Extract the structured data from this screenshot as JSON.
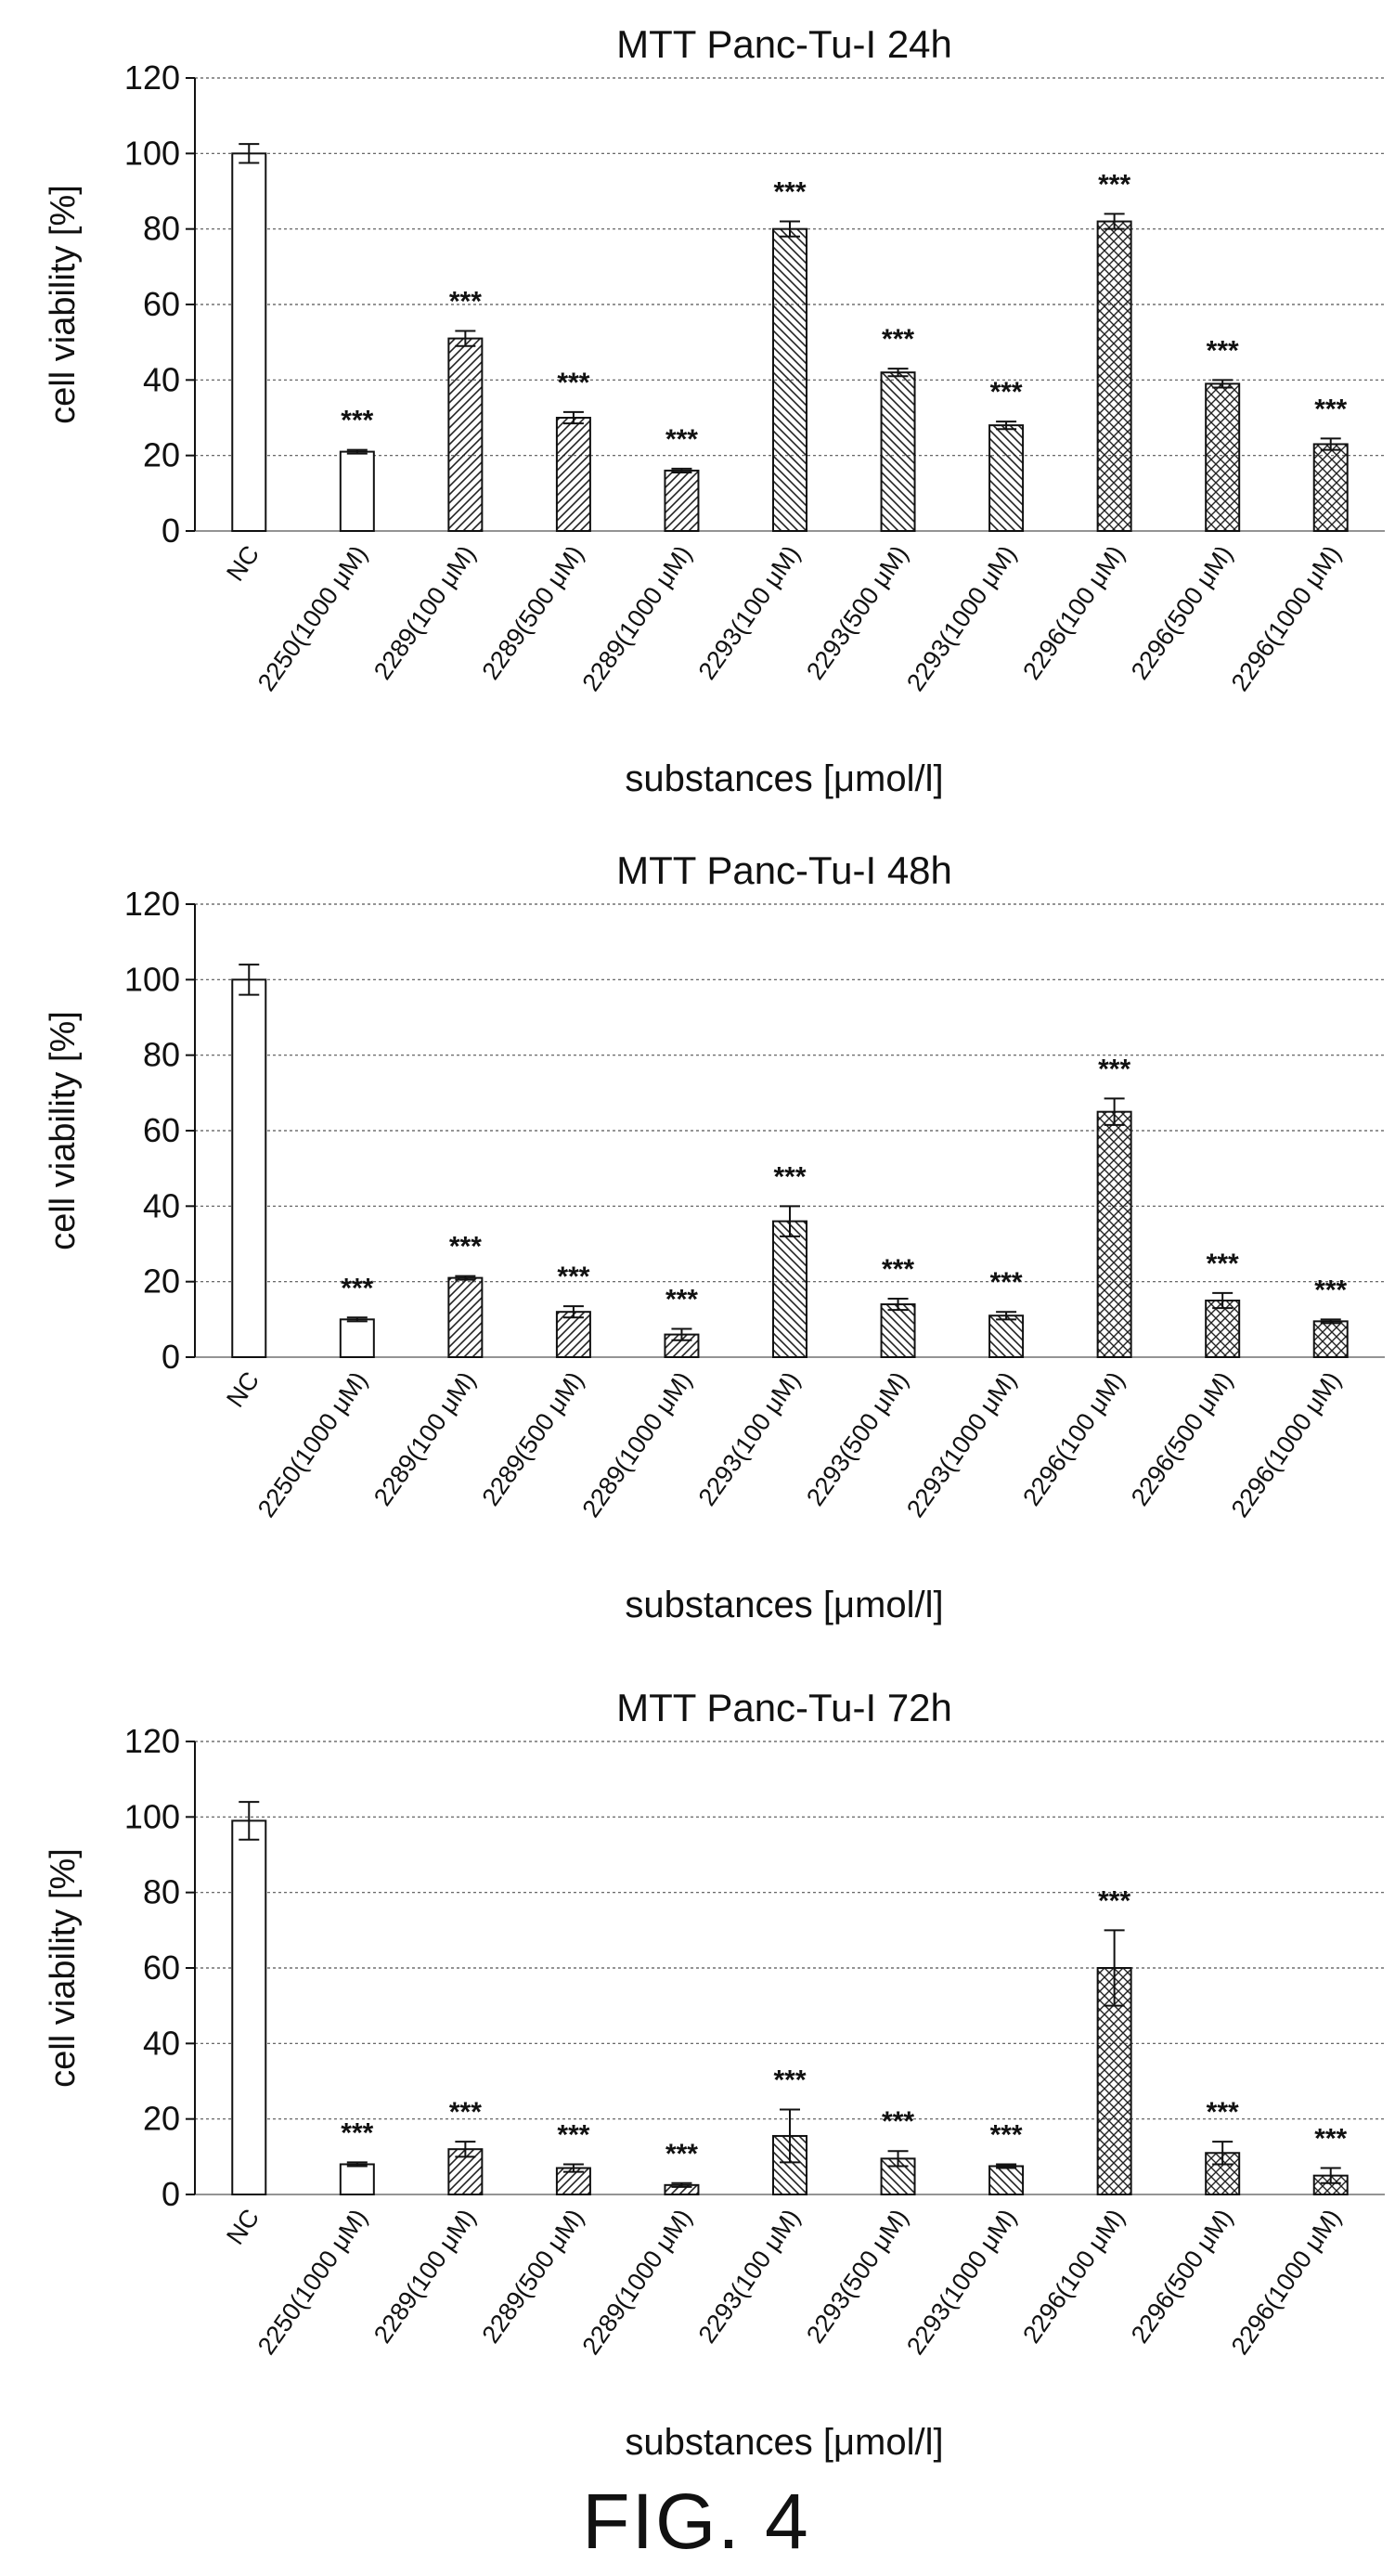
{
  "figure_label": "FIG. 4",
  "chart_data": [
    {
      "type": "bar",
      "title": "MTT Panc-Tu-I 24h",
      "xlabel": "substances [μmol/l]",
      "ylabel": "cell viability [%]",
      "ylim": [
        0,
        120
      ],
      "yticks": [
        0,
        20,
        40,
        60,
        80,
        100,
        120
      ],
      "grid": true,
      "categories": [
        "NC",
        "2250(1000 μM)",
        "2289(100 μM)",
        "2289(500 μM)",
        "2289(1000 μM)",
        "2293(100 μM)",
        "2293(500 μM)",
        "2293(1000 μM)",
        "2296(100 μM)",
        "2296(500 μM)",
        "2296(1000 μM)"
      ],
      "values": [
        100,
        21,
        51,
        30,
        16,
        80,
        42,
        28,
        82,
        39,
        23
      ],
      "errors": [
        2.5,
        0.5,
        2,
        1.5,
        0.5,
        2,
        1,
        1,
        2,
        1,
        1.5
      ],
      "annotations": [
        "",
        "***",
        "***",
        "***",
        "***",
        "***",
        "***",
        "***",
        "***",
        "***",
        "***"
      ]
    },
    {
      "type": "bar",
      "title": "MTT Panc-Tu-I 48h",
      "xlabel": "substances [μmol/l]",
      "ylabel": "cell viability [%]",
      "ylim": [
        0,
        120
      ],
      "yticks": [
        0,
        20,
        40,
        60,
        80,
        100,
        120
      ],
      "grid": true,
      "categories": [
        "NC",
        "2250(1000 μM)",
        "2289(100 μM)",
        "2289(500 μM)",
        "2289(1000 μM)",
        "2293(100 μM)",
        "2293(500 μM)",
        "2293(1000 μM)",
        "2296(100 μM)",
        "2296(500 μM)",
        "2296(1000 μM)"
      ],
      "values": [
        100,
        10,
        21,
        12,
        6,
        36,
        14,
        11,
        65,
        15,
        9.5
      ],
      "errors": [
        4,
        0.5,
        0.5,
        1.5,
        1.5,
        4,
        1.5,
        1,
        3.5,
        2,
        0.5
      ],
      "annotations": [
        "",
        "***",
        "***",
        "***",
        "***",
        "***",
        "***",
        "***",
        "***",
        "***",
        "***"
      ]
    },
    {
      "type": "bar",
      "title": "MTT Panc-Tu-I 72h",
      "xlabel": "substances [μmol/l]",
      "ylabel": "cell viability [%]",
      "ylim": [
        0,
        120
      ],
      "yticks": [
        0,
        20,
        40,
        60,
        80,
        100,
        120
      ],
      "grid": true,
      "categories": [
        "NC",
        "2250(1000 μM)",
        "2289(100 μM)",
        "2289(500 μM)",
        "2289(1000 μM)",
        "2293(100 μM)",
        "2293(500 μM)",
        "2293(1000 μM)",
        "2296(100 μM)",
        "2296(500 μM)",
        "2296(1000 μM)"
      ],
      "values": [
        99,
        8,
        12,
        7,
        2.5,
        15.5,
        9.5,
        7.5,
        60,
        11,
        5
      ],
      "errors": [
        5,
        0.5,
        2,
        1,
        0.5,
        7,
        2,
        0.5,
        10,
        3,
        2
      ],
      "annotations": [
        "",
        "***",
        "***",
        "***",
        "***",
        "***",
        "***",
        "***",
        "***",
        "***",
        "***"
      ]
    }
  ]
}
